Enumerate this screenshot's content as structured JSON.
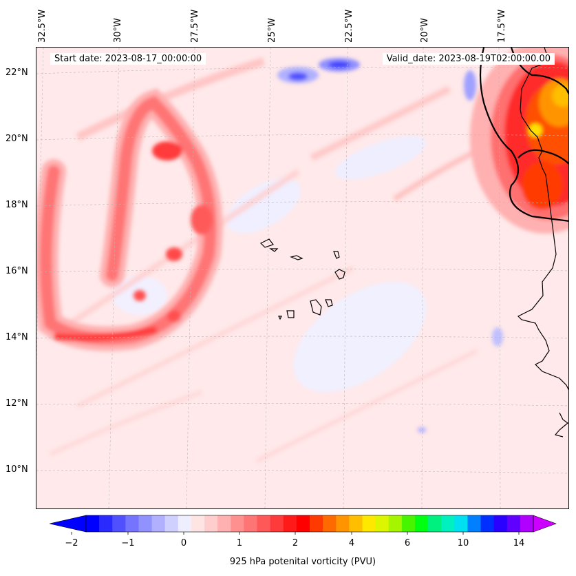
{
  "header": {
    "start_date": "Start date: 2023-08-17_00:00:00",
    "valid_date": "Valid_date: 2023-08-19T02:00:00.00"
  },
  "map": {
    "lon_labels": [
      "32.5°W",
      "30°W",
      "27.5°W",
      "25°W",
      "22.5°W",
      "20°W",
      "17.5°W"
    ],
    "lat_labels": [
      "22°N",
      "20°N",
      "18°N",
      "16°N",
      "14°N",
      "12°N",
      "10°N"
    ],
    "extent": {
      "lon_min": -32.8,
      "lon_max": -15.4,
      "lat_min": 8.9,
      "lat_max": 22.8
    },
    "field_name": "925 hPa potenital vorticity (PVU)",
    "features": [
      "Cape Verde islands",
      "West African coastline",
      "Western Sahara / Mauritania coast"
    ]
  },
  "colorbar": {
    "label": "925 hPa potenital vorticity (PVU)",
    "ticks": [
      "−2",
      "−1",
      "0",
      "1",
      "2",
      "4",
      "6",
      "10",
      "14"
    ],
    "colors": [
      "#0000ff",
      "#2a2aff",
      "#5050ff",
      "#7474ff",
      "#9292ff",
      "#b0b0ff",
      "#d0d0ff",
      "#eeeeff",
      "#ffe4e4",
      "#ffcdcd",
      "#ffb0b0",
      "#ff9090",
      "#ff7474",
      "#ff5858",
      "#ff3a3a",
      "#ff1a1a",
      "#ff0000",
      "#ff3a00",
      "#ff6a00",
      "#ff9400",
      "#ffbe00",
      "#ffe800",
      "#dcf500",
      "#a6f500",
      "#48f500",
      "#00ff10",
      "#00f080",
      "#00f0c0",
      "#00e0f0",
      "#0080ff",
      "#0030ff",
      "#2a00ff",
      "#6000ff",
      "#b000ff"
    ],
    "extend_low_color": "#0000ff",
    "extend_high_color": "#cc00ff"
  }
}
